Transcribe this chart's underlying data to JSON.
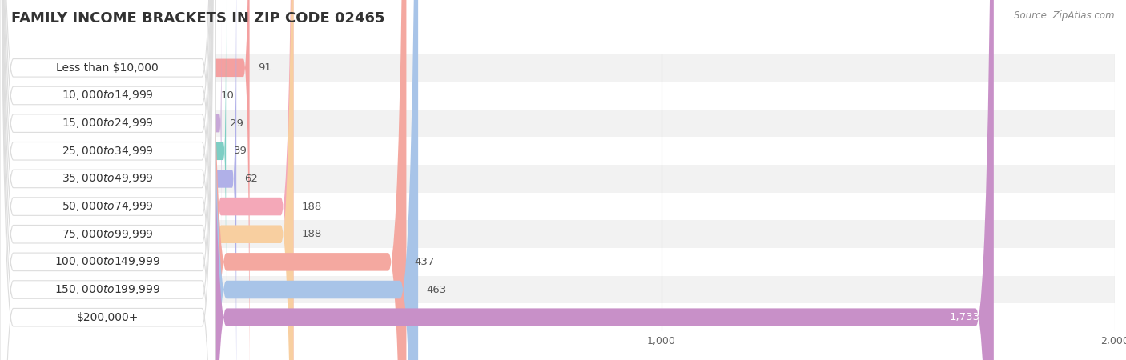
{
  "title": "FAMILY INCOME BRACKETS IN ZIP CODE 02465",
  "source_text": "Source: ZipAtlas.com",
  "categories": [
    "Less than $10,000",
    "$10,000 to $14,999",
    "$15,000 to $24,999",
    "$25,000 to $34,999",
    "$35,000 to $49,999",
    "$50,000 to $74,999",
    "$75,000 to $99,999",
    "$100,000 to $149,999",
    "$150,000 to $199,999",
    "$200,000+"
  ],
  "values": [
    91,
    10,
    29,
    39,
    62,
    188,
    188,
    437,
    463,
    1733
  ],
  "bar_colors": [
    "#F4A0A0",
    "#A8C4E0",
    "#C8A8D8",
    "#7ECEC4",
    "#B0B0E8",
    "#F4A8B8",
    "#F8CFA0",
    "#F4A8A0",
    "#A8C4E8",
    "#C890C8"
  ],
  "background_color": "#ffffff",
  "xlim": [
    0,
    2000
  ],
  "xticks": [
    0,
    1000,
    2000
  ],
  "title_fontsize": 13,
  "label_fontsize": 10,
  "value_fontsize": 9.5,
  "bar_height": 0.65,
  "row_odd_color": "#f2f2f2",
  "row_even_color": "#ffffff",
  "grid_color": "#cccccc",
  "label_pill_color": "#ffffff",
  "label_pill_edge": "#dddddd",
  "value_color_outside": "#555555",
  "value_color_inside": "#ffffff"
}
